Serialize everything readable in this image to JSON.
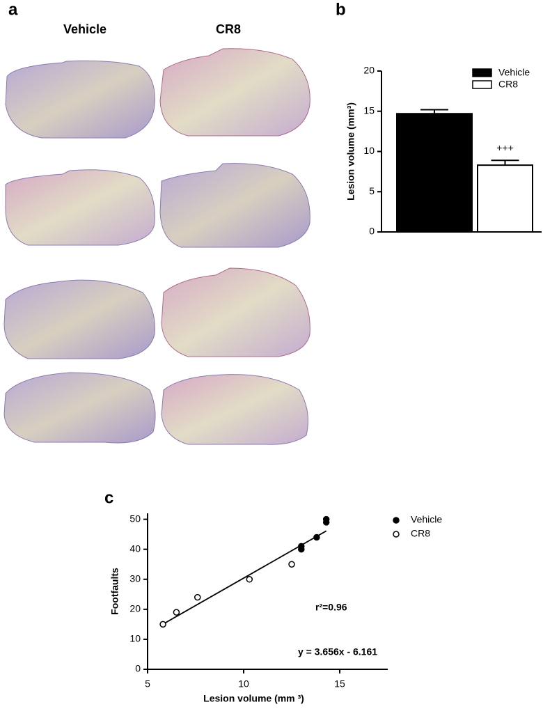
{
  "figure": {
    "panel_labels": [
      "a",
      "b",
      "c"
    ],
    "image_columns": [
      "Vehicle",
      "CR8"
    ]
  },
  "chart_data": [
    {
      "type": "bar",
      "ylabel": "Lesion volume (mm³)",
      "categories": [
        "Vehicle",
        "CR8"
      ],
      "values": [
        14.7,
        8.3
      ],
      "errors": [
        0.5,
        0.6
      ],
      "colors": [
        "#000000",
        "#ffffff"
      ],
      "annotations": [
        {
          "category": 1,
          "text": "+++"
        }
      ],
      "ylim": [
        0,
        20
      ],
      "yticks": [
        0,
        5,
        10,
        15,
        20
      ],
      "legend": "top-right"
    },
    {
      "type": "scatter",
      "xlabel": "Lesion volume (mm ³)",
      "ylabel": "Footfaults",
      "xlim": [
        5,
        17.5
      ],
      "ylim": [
        0,
        52
      ],
      "xticks": [
        5,
        10,
        15
      ],
      "yticks": [
        0,
        10,
        20,
        30,
        40,
        50
      ],
      "legend": "top-right",
      "series": [
        {
          "name": "Vehicle",
          "color": "#000000",
          "filled": true,
          "x": [
            13.0,
            13.0,
            13.8,
            14.3,
            14.3
          ],
          "values": [
            41,
            40,
            44,
            50,
            49
          ]
        },
        {
          "name": "CR8",
          "color": "#000000",
          "filled": false,
          "x": [
            5.8,
            6.5,
            7.6,
            10.3,
            12.5
          ],
          "values": [
            15,
            19,
            24,
            30,
            35
          ]
        }
      ],
      "fit": {
        "slope": 3.656,
        "intercept": -6.161
      },
      "annotations": [
        "r²=0.96",
        "y = 3.656x - 6.161"
      ]
    }
  ]
}
